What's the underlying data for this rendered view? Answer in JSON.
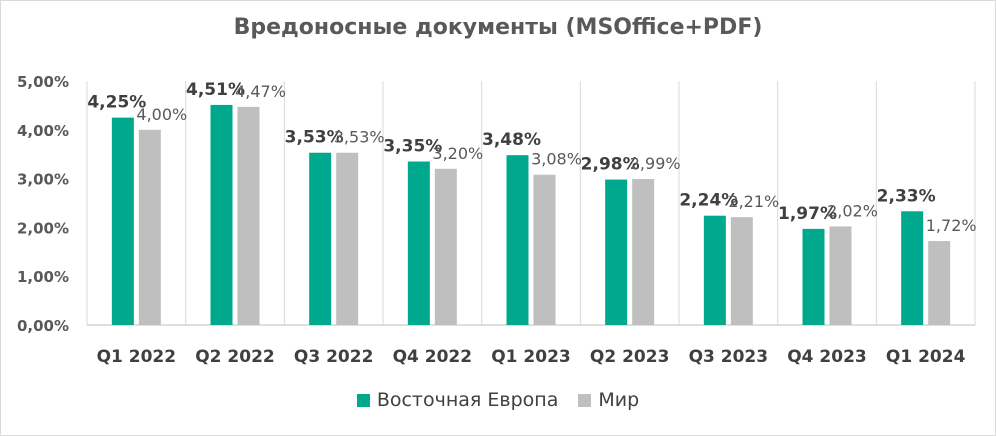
{
  "chart_data": {
    "type": "bar",
    "title": "Вредоносные документы (MSOffice+PDF)",
    "categories": [
      "Q1 2022",
      "Q2 2022",
      "Q3 2022",
      "Q4 2022",
      "Q1 2023",
      "Q2 2023",
      "Q3 2023",
      "Q4 2023",
      "Q1 2024"
    ],
    "series": [
      {
        "name": "Восточная Европа",
        "color": "#00a88e",
        "values": [
          4.25,
          4.51,
          3.53,
          3.35,
          3.48,
          2.98,
          2.24,
          1.97,
          2.33
        ],
        "labels": [
          "4,25%",
          "4,51%",
          "3,53%",
          "3,35%",
          "3,48%",
          "2,98%",
          "2,24%",
          "1,97%",
          "2,33%"
        ],
        "label_style": "bold"
      },
      {
        "name": "Мир",
        "color": "#bfbfbf",
        "values": [
          4.0,
          4.47,
          3.53,
          3.2,
          3.08,
          2.99,
          2.21,
          2.02,
          1.72
        ],
        "labels": [
          "4,00%",
          "4,47%",
          "3,53%",
          "3,20%",
          "3,08%",
          "2,99%",
          "2,21%",
          "2,02%",
          "1,72%"
        ],
        "label_style": "normal"
      }
    ],
    "ylim": [
      0,
      5
    ],
    "yticks": [
      "0,00%",
      "1,00%",
      "2,00%",
      "3,00%",
      "4,00%",
      "5,00%"
    ],
    "xlabel": "",
    "ylabel": "",
    "grid": "vertical-category-separators",
    "legend_position": "bottom"
  }
}
